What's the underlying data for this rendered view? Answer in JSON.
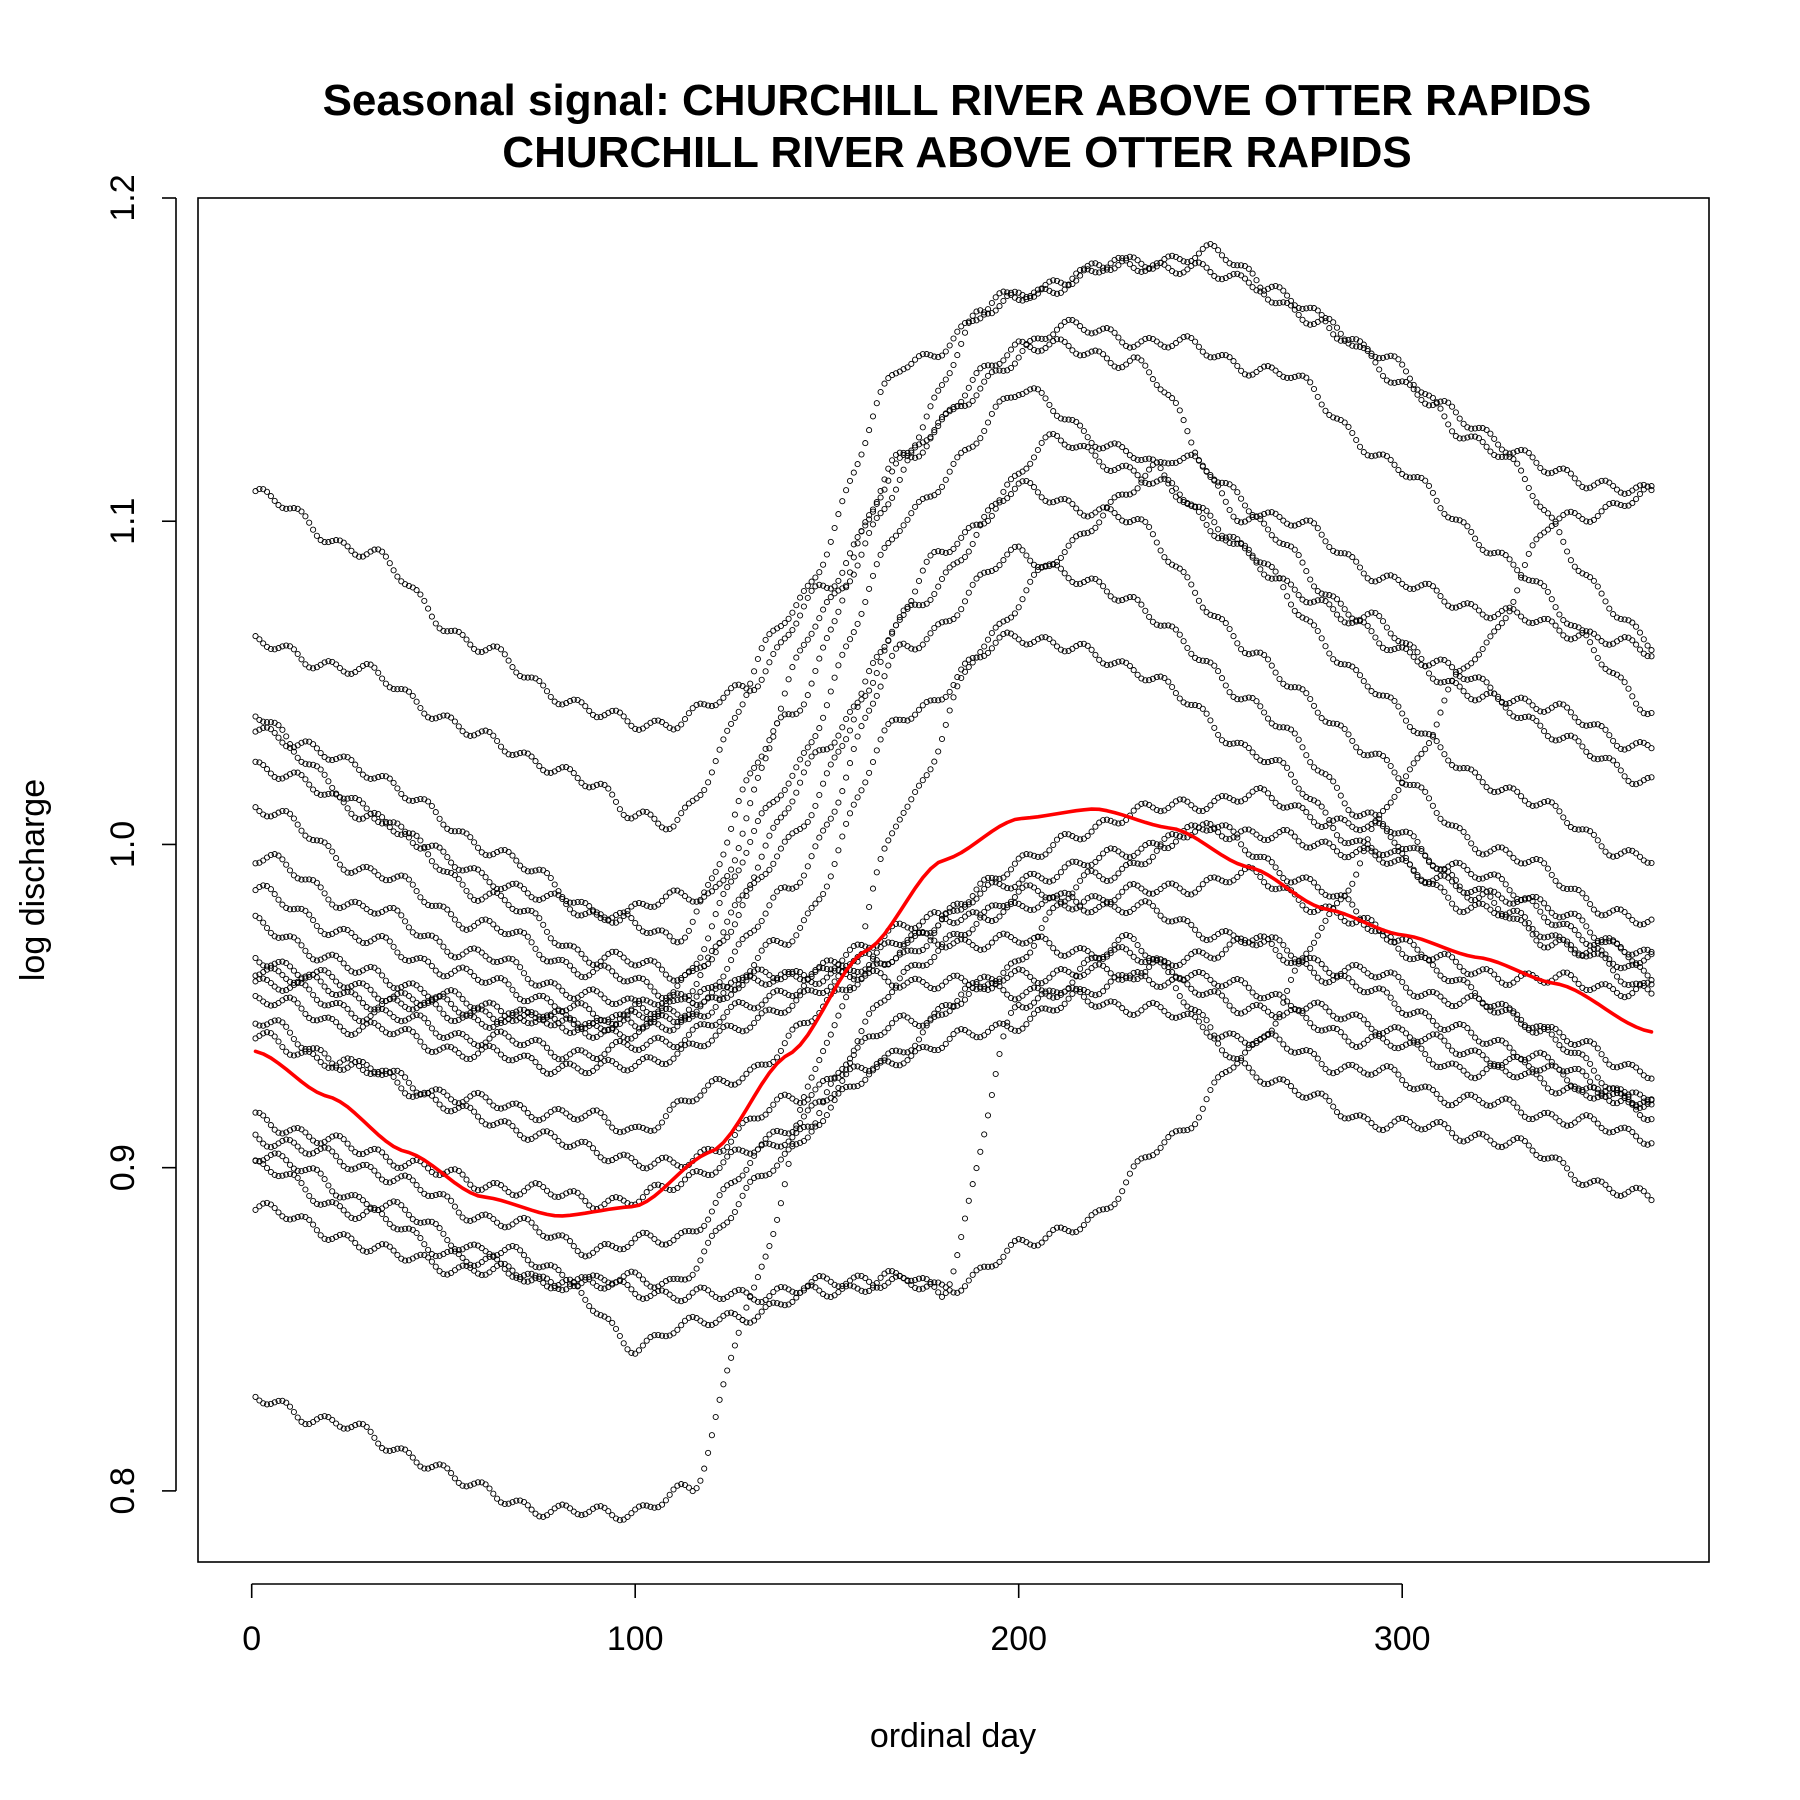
{
  "chart_data": {
    "type": "scatter",
    "title": "Seasonal signal: CHURCHILL RIVER ABOVE OTTER RAPIDS",
    "subtitle": "CHURCHILL RIVER ABOVE OTTER RAPIDS",
    "xlabel": "ordinal day",
    "ylabel": "log discharge",
    "xlim": [
      -14,
      380
    ],
    "ylim": [
      0.778,
      1.2
    ],
    "xticks": [
      0,
      100,
      200,
      300
    ],
    "xtick_labels": [
      "0",
      "100",
      "200",
      "300"
    ],
    "yticks": [
      0.8,
      0.9,
      1.0,
      1.1,
      1.2
    ],
    "ytick_labels": [
      "0.8",
      "0.9",
      "1.0",
      "1.1",
      "1.2"
    ],
    "grid": false,
    "legend": "none",
    "observation_color": "#000000",
    "signal_color": "#ff0000",
    "series": [
      {
        "x": [
          1,
          30,
          60,
          90,
          110,
          130,
          150,
          170,
          190,
          220,
          250,
          280,
          310,
          340,
          365
        ],
        "values": [
          1.108,
          1.09,
          1.06,
          1.04,
          1.037,
          1.05,
          1.08,
          1.12,
          1.165,
          1.178,
          1.183,
          1.16,
          1.135,
          1.115,
          1.108
        ]
      },
      {
        "x": [
          1,
          30,
          60,
          90,
          100,
          110,
          140,
          170,
          200,
          230,
          260,
          290,
          320,
          365
        ],
        "values": [
          1.062,
          1.053,
          1.033,
          1.018,
          1.01,
          1.005,
          1.07,
          1.148,
          1.17,
          1.18,
          1.175,
          1.155,
          1.125,
          1.062
        ]
      },
      {
        "x": [
          1,
          30,
          60,
          90,
          120,
          150,
          180,
          210,
          240,
          270,
          300,
          330,
          365
        ],
        "values": [
          1.04,
          1.01,
          0.99,
          0.978,
          0.985,
          1.075,
          1.132,
          1.16,
          1.155,
          1.145,
          1.115,
          1.085,
          1.042
        ]
      },
      {
        "x": [
          1,
          30,
          60,
          90,
          110,
          140,
          170,
          200,
          230,
          260,
          290,
          320,
          365
        ],
        "values": [
          1.036,
          1.023,
          1.0,
          0.98,
          0.97,
          1.04,
          1.12,
          1.155,
          1.15,
          1.1,
          1.07,
          1.045,
          1.02
        ]
      },
      {
        "x": [
          1,
          30,
          60,
          90,
          115,
          150,
          180,
          210,
          240,
          270,
          300,
          330,
          365
        ],
        "values": [
          1.025,
          1.01,
          0.985,
          0.965,
          0.96,
          1.03,
          1.09,
          1.125,
          1.11,
          1.08,
          1.06,
          1.045,
          1.03
        ]
      },
      {
        "x": [
          1,
          30,
          60,
          90,
          110,
          140,
          170,
          200,
          230,
          260,
          290,
          320,
          365
        ],
        "values": [
          1.012,
          0.992,
          0.975,
          0.96,
          0.955,
          1.02,
          1.1,
          1.14,
          1.12,
          1.09,
          1.05,
          1.02,
          0.995
        ]
      },
      {
        "x": [
          1,
          30,
          60,
          90,
          110,
          140,
          170,
          200,
          230,
          260,
          290,
          320,
          365
        ],
        "values": [
          0.996,
          0.98,
          0.965,
          0.952,
          0.95,
          1.0,
          1.07,
          1.11,
          1.1,
          1.06,
          1.03,
          1.0,
          0.975
        ]
      },
      {
        "x": [
          1,
          30,
          60,
          90,
          110,
          140,
          170,
          200,
          230,
          260,
          290,
          320,
          365
        ],
        "values": [
          0.985,
          0.97,
          0.958,
          0.947,
          0.945,
          0.985,
          1.06,
          1.09,
          1.075,
          1.045,
          1.01,
          0.985,
          0.965
        ]
      },
      {
        "x": [
          1,
          30,
          60,
          90,
          110,
          140,
          170,
          200,
          230,
          260,
          290,
          320,
          365
        ],
        "values": [
          0.975,
          0.96,
          0.95,
          0.942,
          0.943,
          0.97,
          1.04,
          1.065,
          1.055,
          1.03,
          1.0,
          0.98,
          0.96
        ]
      },
      {
        "x": [
          1,
          30,
          60,
          90,
          110,
          140,
          170,
          200,
          230,
          260,
          290,
          320,
          365
        ],
        "values": [
          0.965,
          0.955,
          0.948,
          0.945,
          0.952,
          0.96,
          0.958,
          0.955,
          0.95,
          0.94,
          0.93,
          0.92,
          0.91
        ]
      },
      {
        "x": [
          1,
          30,
          60,
          90,
          110,
          140,
          170,
          200,
          230,
          260,
          290,
          320,
          365
        ],
        "values": [
          0.962,
          0.952,
          0.946,
          0.944,
          0.948,
          0.96,
          0.966,
          0.995,
          1.01,
          1.015,
          1.005,
          0.99,
          0.965
        ]
      },
      {
        "x": [
          1,
          30,
          60,
          90,
          110,
          140,
          170,
          200,
          230,
          260,
          290,
          320,
          365
        ],
        "values": [
          0.958,
          0.948,
          0.94,
          0.935,
          0.94,
          0.955,
          0.975,
          0.98,
          0.985,
          0.99,
          0.975,
          0.96,
          0.955
        ]
      },
      {
        "x": [
          1,
          30,
          60,
          90,
          110,
          140,
          170,
          200,
          230,
          260,
          290,
          320,
          365
        ],
        "values": [
          0.952,
          0.943,
          0.935,
          0.93,
          0.935,
          0.95,
          0.97,
          0.97,
          0.965,
          0.955,
          0.945,
          0.935,
          0.92
        ]
      },
      {
        "x": [
          1,
          30,
          60,
          90,
          100,
          130,
          160,
          190,
          220,
          250,
          280,
          310,
          340,
          365
        ],
        "values": [
          0.945,
          0.93,
          0.92,
          0.915,
          0.912,
          0.93,
          0.96,
          0.985,
          0.995,
          1.005,
          0.985,
          0.96,
          0.94,
          0.915
        ]
      },
      {
        "x": [
          1,
          30,
          60,
          90,
          110,
          140,
          170,
          200,
          230,
          260,
          290,
          320,
          365
        ],
        "values": [
          0.94,
          0.93,
          0.915,
          0.905,
          0.9,
          0.92,
          0.945,
          0.96,
          0.96,
          0.95,
          0.94,
          0.93,
          0.92
        ]
      },
      {
        "x": [
          1,
          30,
          60,
          90,
          100,
          130,
          160,
          190,
          220,
          250,
          280,
          310,
          340,
          365
        ],
        "values": [
          0.915,
          0.905,
          0.895,
          0.89,
          0.89,
          0.905,
          0.93,
          0.955,
          0.99,
          1.005,
          1.0,
          0.99,
          0.97,
          0.955
        ]
      },
      {
        "x": [
          1,
          30,
          60,
          90,
          110,
          140,
          170,
          200,
          230,
          260,
          290,
          320,
          365
        ],
        "values": [
          0.91,
          0.9,
          0.885,
          0.875,
          0.878,
          0.91,
          0.935,
          0.945,
          0.96,
          0.97,
          0.96,
          0.95,
          0.93
        ]
      },
      {
        "x": [
          1,
          30,
          60,
          90,
          110,
          140,
          170,
          200,
          230,
          260,
          290,
          320,
          365
        ],
        "values": [
          0.905,
          0.89,
          0.875,
          0.865,
          0.865,
          0.905,
          0.96,
          0.985,
          0.98,
          0.97,
          0.955,
          0.94,
          0.92
        ]
      },
      {
        "x": [
          1,
          20,
          40,
          60,
          80,
          100,
          120,
          140,
          160,
          180,
          200,
          220,
          240,
          260,
          280,
          300,
          320,
          340,
          365
        ],
        "values": [
          0.888,
          0.88,
          0.872,
          0.868,
          0.865,
          0.862,
          0.86,
          0.862,
          0.866,
          0.862,
          0.875,
          0.885,
          0.91,
          0.935,
          0.975,
          1.02,
          1.06,
          1.1,
          1.108
        ]
      },
      {
        "x": [
          1,
          30,
          60,
          80,
          100,
          110,
          130,
          150,
          170,
          180,
          200,
          230,
          260,
          290,
          320,
          365
        ],
        "values": [
          0.9,
          0.885,
          0.87,
          0.865,
          0.845,
          0.85,
          0.855,
          0.862,
          0.866,
          0.862,
          0.95,
          0.97,
          0.93,
          0.915,
          0.91,
          0.89
        ]
      },
      {
        "x": [
          1,
          20,
          40,
          60,
          80,
          100,
          115,
          130,
          150,
          170,
          190,
          210,
          240,
          270,
          300,
          330,
          365
        ],
        "values": [
          0.828,
          0.822,
          0.812,
          0.8,
          0.793,
          0.794,
          0.8,
          0.86,
          0.94,
          1.01,
          1.06,
          1.09,
          1.12,
          1.1,
          1.08,
          1.07,
          1.06
        ]
      }
    ],
    "signal": {
      "x": [
        1,
        20,
        40,
        60,
        80,
        100,
        120,
        140,
        160,
        180,
        200,
        220,
        240,
        260,
        280,
        300,
        320,
        340,
        365
      ],
      "values": [
        0.936,
        0.922,
        0.905,
        0.891,
        0.885,
        0.888,
        0.905,
        0.935,
        0.967,
        0.995,
        1.008,
        1.011,
        1.005,
        0.993,
        0.98,
        0.972,
        0.965,
        0.957,
        0.942
      ]
    }
  }
}
